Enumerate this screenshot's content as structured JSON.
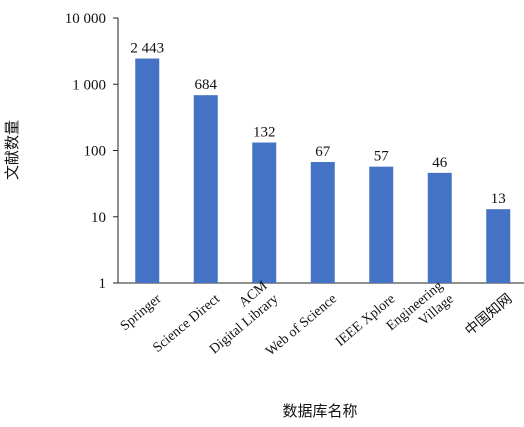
{
  "chart_data": {
    "type": "bar",
    "yscale": "log",
    "ylim": [
      1,
      10000
    ],
    "yticks": [
      1,
      10,
      100,
      1000,
      10000
    ],
    "ytick_labels": [
      "1",
      "10",
      "100",
      "1 000",
      "10 000"
    ],
    "categories": [
      [
        "Springer"
      ],
      [
        "Science Direct"
      ],
      [
        "ACM",
        "Digital Library"
      ],
      [
        "Web of Science"
      ],
      [
        "IEEE Xplore"
      ],
      [
        "Engineering",
        "Village"
      ],
      [
        "中国知网"
      ]
    ],
    "values": [
      2443,
      684,
      132,
      67,
      57,
      46,
      13
    ],
    "data_labels": [
      "2 443",
      "684",
      "132",
      "67",
      "57",
      "46",
      "13"
    ],
    "xlabel": "数据库名称",
    "ylabel": "文献数量",
    "bar_color": "#4472C4",
    "grid": false,
    "legend": "none"
  }
}
